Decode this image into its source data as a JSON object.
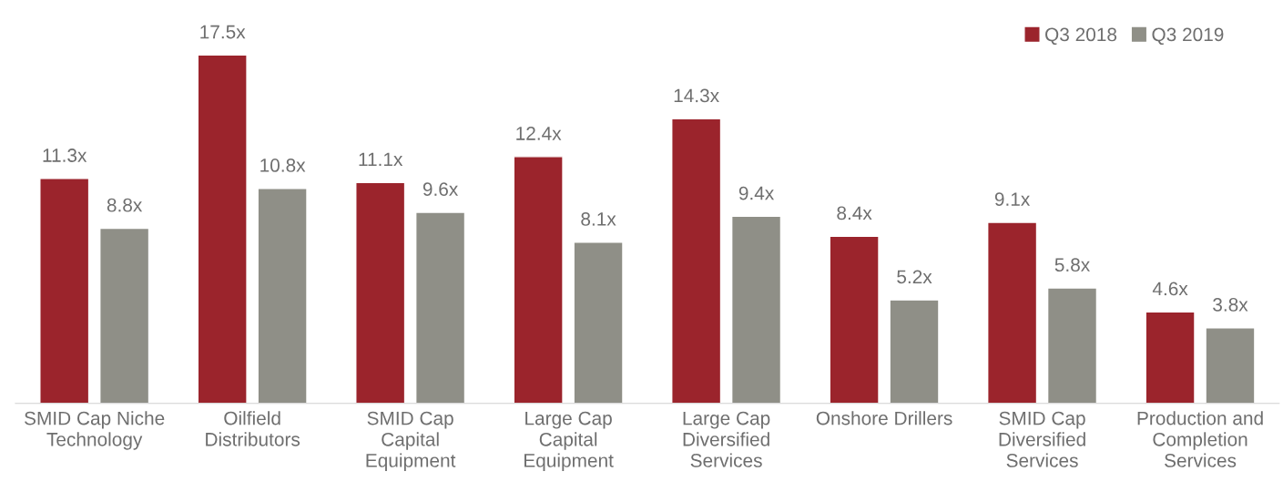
{
  "chart_data": {
    "type": "bar",
    "categories": [
      "SMID Cap Niche\nTechnology",
      "Oilfield\nDistributors",
      "SMID Cap\nCapital\nEquipment",
      "Large Cap\nCapital\nEquipment",
      "Large Cap\nDiversified\nServices",
      "Onshore Drillers",
      "SMID Cap\nDiversified\nServices",
      "Production and\nCompletion\nServices"
    ],
    "series": [
      {
        "name": "Q3 2018",
        "color": "#9b242c",
        "values": [
          11.3,
          17.5,
          11.1,
          12.4,
          14.3,
          8.4,
          9.1,
          4.6
        ],
        "value_labels": [
          "11.3x",
          "17.5x",
          "11.1x",
          "12.4x",
          "14.3x",
          "8.4x",
          "9.1x",
          "4.6x"
        ]
      },
      {
        "name": "Q3 2019",
        "color": "#8f8f87",
        "values": [
          8.8,
          10.8,
          9.6,
          8.1,
          9.4,
          5.2,
          5.8,
          3.8
        ],
        "value_labels": [
          "8.8x",
          "10.8x",
          "9.6x",
          "8.1x",
          "9.4x",
          "5.2x",
          "5.8x",
          "3.8x"
        ]
      }
    ],
    "legend": "top right",
    "grid": false
  }
}
